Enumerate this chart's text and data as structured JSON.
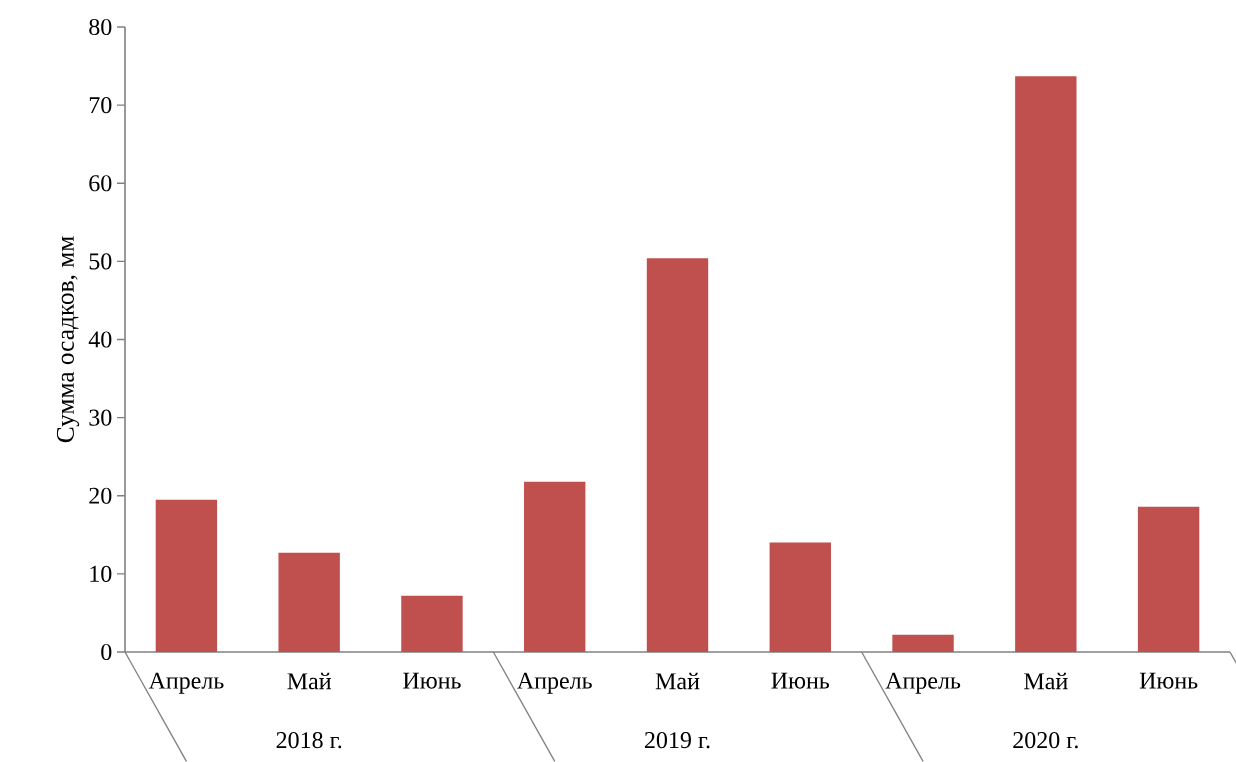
{
  "chart_data": {
    "type": "bar",
    "ylabel": "Сумма осадков, мм",
    "categories": [
      "Апрель",
      "Май",
      "Июнь",
      "Апрель",
      "Май",
      "Июнь",
      "Апрель",
      "Май",
      "Июнь"
    ],
    "values": [
      19.5,
      12.7,
      7.2,
      21.8,
      50.4,
      14.0,
      2.2,
      73.7,
      18.6
    ],
    "color": "#c0504d",
    "ylim": [
      0,
      80
    ],
    "yticks": [
      0,
      10,
      20,
      30,
      40,
      50,
      60,
      70,
      80
    ],
    "annotations": [
      "2018 г.",
      "2019 г.",
      "2020 г."
    ]
  }
}
